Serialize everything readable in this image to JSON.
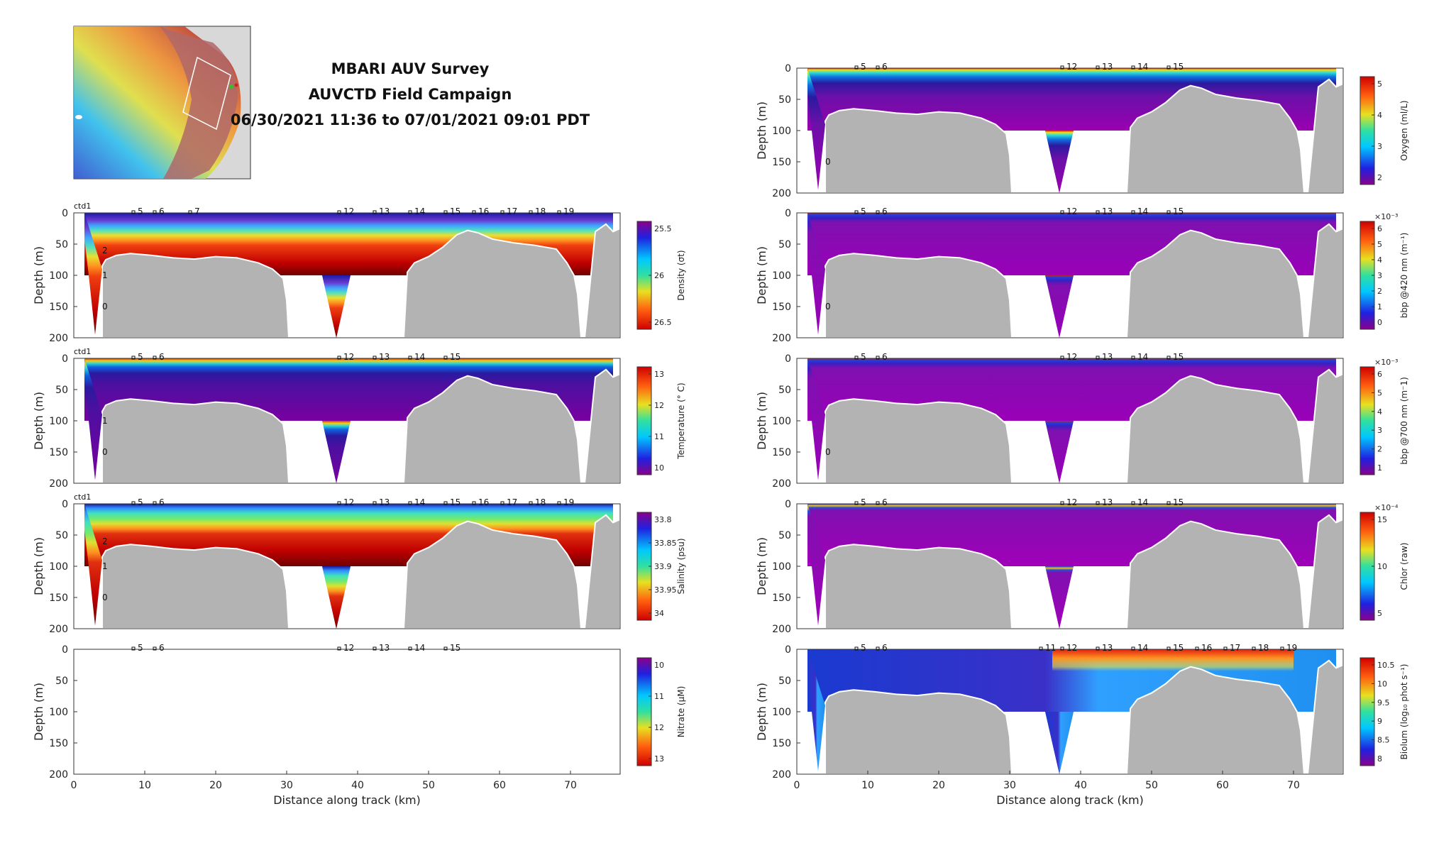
{
  "title": {
    "line1": "MBARI AUV Survey",
    "line2": "AUVCTD Field Campaign",
    "line3": "06/30/2021 11:36 to 07/01/2021 09:01 PDT"
  },
  "colors": {
    "terrain": "#b3b3b3",
    "deep_fill": "#ffffff",
    "panel_border": "#333333"
  },
  "chart_data": [
    {
      "type": "heatmap",
      "id": "density",
      "ylabel": "Depth (m)",
      "xlabel": "",
      "ylim": [
        200,
        0
      ],
      "xlim": [
        0,
        77
      ],
      "yticks": [
        "0",
        "50",
        "100",
        "150",
        "200"
      ],
      "xticks": [],
      "colorbar": {
        "label": "Density (σt)",
        "ticks": [
          "25.5",
          "26",
          "26.5"
        ],
        "reversed": true,
        "exponent": ""
      },
      "ctd_label": "ctd1",
      "markers": [
        "5",
        "6",
        "7",
        "12",
        "13",
        "14",
        "15",
        "16",
        "17",
        "18",
        "19"
      ],
      "profile_labels": [
        "2",
        "1",
        "0"
      ]
    },
    {
      "type": "heatmap",
      "id": "temperature",
      "ylabel": "Depth (m)",
      "xlabel": "",
      "ylim": [
        200,
        0
      ],
      "xlim": [
        0,
        77
      ],
      "yticks": [
        "0",
        "50",
        "100",
        "150",
        "200"
      ],
      "xticks": [],
      "colorbar": {
        "label": "Temperature (° C)",
        "ticks": [
          "13",
          "12",
          "11",
          "10"
        ],
        "reversed": false,
        "exponent": ""
      },
      "ctd_label": "ctd1",
      "markers": [
        "5",
        "6",
        "12",
        "13",
        "14",
        "15"
      ],
      "profile_labels": [
        "1",
        "0"
      ]
    },
    {
      "type": "heatmap",
      "id": "salinity",
      "ylabel": "Depth (m)",
      "xlabel": "",
      "ylim": [
        200,
        0
      ],
      "xlim": [
        0,
        77
      ],
      "yticks": [
        "0",
        "50",
        "100",
        "150",
        "200"
      ],
      "xticks": [],
      "colorbar": {
        "label": "Salinity (psu)",
        "ticks": [
          "33.8",
          "33.85",
          "33.9",
          "33.95",
          "34"
        ],
        "reversed": true,
        "exponent": ""
      },
      "ctd_label": "ctd1",
      "markers": [
        "5",
        "6",
        "12",
        "13",
        "14",
        "15",
        "16",
        "17",
        "18",
        "19"
      ],
      "profile_labels": [
        "2",
        "1",
        "0"
      ]
    },
    {
      "type": "heatmap",
      "id": "nitrate",
      "ylabel": "Depth (m)",
      "xlabel": "Distance along track (km)",
      "ylim": [
        200,
        0
      ],
      "xlim": [
        0,
        77
      ],
      "yticks": [
        "0",
        "50",
        "100",
        "150",
        "200"
      ],
      "xticks": [
        "0",
        "10",
        "20",
        "30",
        "40",
        "50",
        "60",
        "70"
      ],
      "colorbar": {
        "label": "Nitrate (μM)",
        "ticks": [
          "10",
          "11",
          "12",
          "13"
        ],
        "reversed": true,
        "exponent": ""
      },
      "ctd_label": "",
      "markers": [
        "5",
        "6",
        "12",
        "13",
        "14",
        "15"
      ],
      "profile_labels": [],
      "empty": true
    },
    {
      "type": "heatmap",
      "id": "oxygen",
      "ylabel": "Depth (m)",
      "xlabel": "",
      "ylim": [
        200,
        0
      ],
      "xlim": [
        0,
        77
      ],
      "yticks": [
        "0",
        "50",
        "100",
        "150",
        "200"
      ],
      "xticks": [],
      "colorbar": {
        "label": "Oxygen (ml/L)",
        "ticks": [
          "5",
          "4",
          "3",
          "2"
        ],
        "reversed": false,
        "exponent": ""
      },
      "ctd_label": "",
      "markers": [
        "5",
        "6",
        "12",
        "13",
        "14",
        "15"
      ],
      "profile_labels": [
        "0"
      ]
    },
    {
      "type": "heatmap",
      "id": "bbp420",
      "ylabel": "Depth (m)",
      "xlabel": "",
      "ylim": [
        200,
        0
      ],
      "xlim": [
        0,
        77
      ],
      "yticks": [
        "0",
        "50",
        "100",
        "150",
        "200"
      ],
      "xticks": [],
      "colorbar": {
        "label": "bbp @420 nm (m⁻¹)",
        "ticks": [
          "6",
          "5",
          "4",
          "3",
          "2",
          "1",
          "0"
        ],
        "reversed": false,
        "exponent": "×10⁻³"
      },
      "ctd_label": "",
      "markers": [
        "5",
        "6",
        "12",
        "13",
        "14",
        "15"
      ],
      "profile_labels": [
        "0"
      ]
    },
    {
      "type": "heatmap",
      "id": "bbp700",
      "ylabel": "Depth (m)",
      "xlabel": "",
      "ylim": [
        200,
        0
      ],
      "xlim": [
        0,
        77
      ],
      "yticks": [
        "0",
        "50",
        "100",
        "150",
        "200"
      ],
      "xticks": [],
      "colorbar": {
        "label": "bbp @700 nm (m⁻1)",
        "ticks": [
          "6",
          "5",
          "4",
          "3",
          "2",
          "1"
        ],
        "reversed": false,
        "exponent": "×10⁻³"
      },
      "ctd_label": "",
      "markers": [
        "5",
        "6",
        "12",
        "13",
        "14",
        "15"
      ],
      "profile_labels": [
        "0"
      ]
    },
    {
      "type": "heatmap",
      "id": "chlor",
      "ylabel": "Depth (m)",
      "xlabel": "",
      "ylim": [
        200,
        0
      ],
      "xlim": [
        0,
        77
      ],
      "yticks": [
        "0",
        "50",
        "100",
        "150",
        "200"
      ],
      "xticks": [],
      "colorbar": {
        "label": "Chlor (raw)",
        "ticks": [
          "15",
          "10",
          "5"
        ],
        "reversed": false,
        "exponent": "×10⁻⁴"
      },
      "ctd_label": "",
      "markers": [
        "5",
        "6",
        "12",
        "13",
        "14",
        "15"
      ],
      "profile_labels": []
    },
    {
      "type": "heatmap",
      "id": "biolum",
      "ylabel": "Depth (m)",
      "xlabel": "Distance along track (km)",
      "ylim": [
        200,
        0
      ],
      "xlim": [
        0,
        77
      ],
      "yticks": [
        "0",
        "50",
        "100",
        "150",
        "200"
      ],
      "xticks": [
        "0",
        "10",
        "20",
        "30",
        "40",
        "50",
        "60",
        "70"
      ],
      "colorbar": {
        "label": "Biolum (log₁₀ phot s⁻¹)",
        "ticks": [
          "10.5",
          "10",
          "9.5",
          "9",
          "8.5",
          "8"
        ],
        "reversed": false,
        "exponent": ""
      },
      "ctd_label": "",
      "markers": [
        "5",
        "6",
        "11",
        "12",
        "13",
        "14",
        "15",
        "16",
        "17",
        "18",
        "19"
      ],
      "profile_labels": []
    }
  ]
}
